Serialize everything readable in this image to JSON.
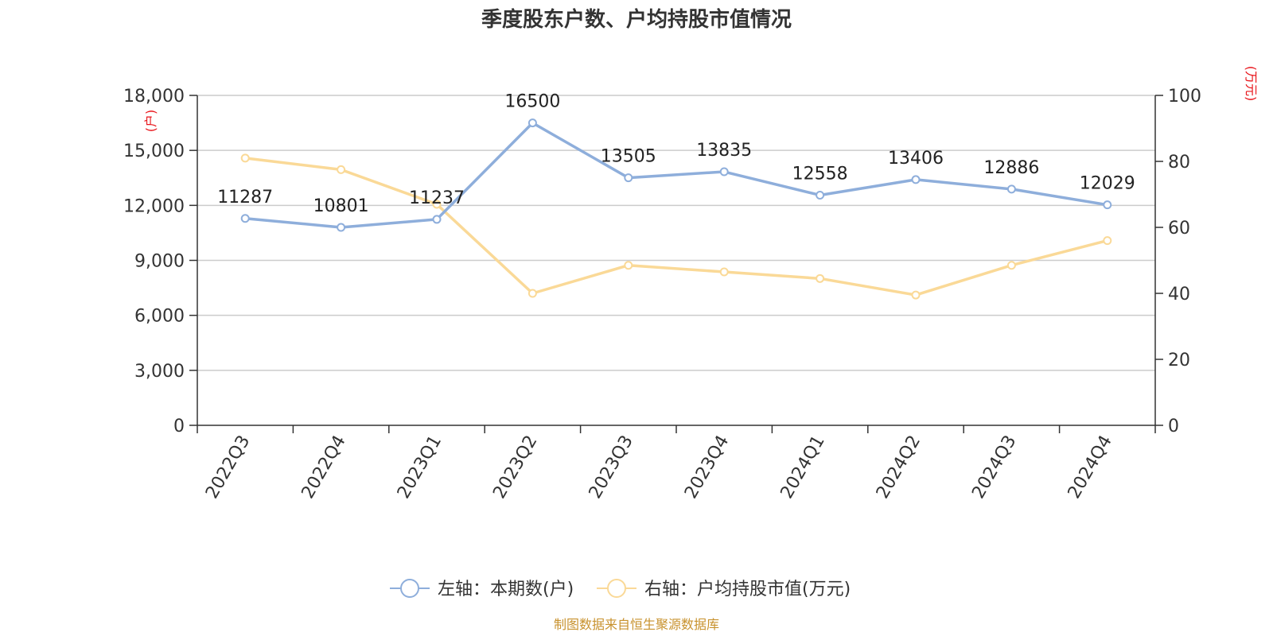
{
  "chart_data": {
    "type": "line",
    "title": "季度股东户数、户均持股市值情况",
    "categories": [
      "2022Q3",
      "2022Q4",
      "2023Q1",
      "2023Q2",
      "2023Q3",
      "2023Q4",
      "2024Q1",
      "2024Q2",
      "2024Q3",
      "2024Q4"
    ],
    "series": [
      {
        "name": "左轴：本期数(户)",
        "axis": "left",
        "color": "#8eaedb",
        "values": [
          11287,
          10801,
          11237,
          16500,
          13505,
          13835,
          12558,
          13406,
          12886,
          12029
        ],
        "labels": [
          "11287",
          "10801",
          "11237",
          "16500",
          "13505",
          "13835",
          "12558",
          "13406",
          "12886",
          "12029"
        ]
      },
      {
        "name": "右轴：户均持股市值(万元)",
        "axis": "right",
        "color": "#fad997",
        "values": [
          81,
          77.5,
          67,
          40,
          48.5,
          46.5,
          44.5,
          39.5,
          48.5,
          56
        ]
      }
    ],
    "left_axis": {
      "unit": "(户)",
      "ylim": [
        0,
        18000
      ],
      "ticks": [
        0,
        3000,
        6000,
        9000,
        12000,
        15000,
        18000
      ],
      "tick_labels": [
        "0",
        "3,000",
        "6,000",
        "9,000",
        "12,000",
        "15,000",
        "18,000"
      ]
    },
    "right_axis": {
      "unit": "(万元)",
      "ylim": [
        0,
        100
      ],
      "ticks": [
        0,
        20,
        40,
        60,
        80,
        100
      ],
      "tick_labels": [
        "0",
        "20",
        "40",
        "60",
        "80",
        "100"
      ]
    },
    "legend_position": "bottom-center",
    "grid": true,
    "source": "制图数据来自恒生聚源数据库"
  }
}
